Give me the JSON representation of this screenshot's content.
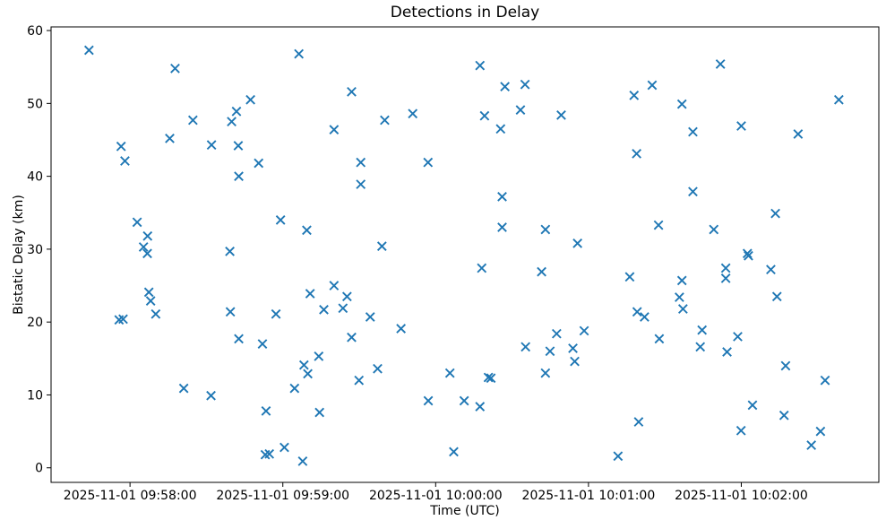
{
  "chart_data": {
    "type": "scatter",
    "title": "Detections in Delay",
    "xlabel": "Time (UTC)",
    "ylabel": "Bistatic Delay (km)",
    "marker": "x",
    "marker_color": "#1f77b4",
    "axis_color": "#000000",
    "background_color": "#ffffff",
    "grid": false,
    "legend": "none",
    "x_tick_labels": [
      "2025-11-01 09:58:00",
      "2025-11-01 09:59:00",
      "2025-11-01 10:00:00",
      "2025-11-01 10:01:00",
      "2025-11-01 10:02:00"
    ],
    "x_tick_seconds": [
      0,
      60,
      120,
      180,
      240
    ],
    "y_tick_labels": [
      "0",
      "10",
      "20",
      "30",
      "40",
      "50",
      "60"
    ],
    "y_ticks": [
      0,
      10,
      20,
      30,
      40,
      50,
      60
    ],
    "xlim_seconds": [
      -31,
      294
    ],
    "ylim": [
      -2.0,
      60.5
    ],
    "points_format": [
      "seconds_after_first_xtick",
      "bistatic_delay_km"
    ],
    "points": [
      [
        -16.1,
        57.3
      ],
      [
        -4.3,
        20.3
      ],
      [
        -3.5,
        44.1
      ],
      [
        -2.7,
        20.4
      ],
      [
        -2.0,
        42.1
      ],
      [
        2.8,
        33.7
      ],
      [
        5.3,
        30.3
      ],
      [
        6.8,
        29.4
      ],
      [
        6.9,
        31.8
      ],
      [
        7.4,
        24.1
      ],
      [
        8.1,
        22.9
      ],
      [
        10.1,
        21.1
      ],
      [
        15.6,
        45.2
      ],
      [
        17.7,
        54.8
      ],
      [
        21.1,
        10.9
      ],
      [
        24.7,
        47.7
      ],
      [
        31.8,
        9.9
      ],
      [
        32.0,
        44.3
      ],
      [
        39.2,
        29.7
      ],
      [
        39.4,
        21.4
      ],
      [
        39.9,
        47.5
      ],
      [
        41.8,
        48.9
      ],
      [
        42.5,
        44.2
      ],
      [
        42.7,
        40.0
      ],
      [
        42.7,
        17.7
      ],
      [
        47.3,
        50.5
      ],
      [
        50.5,
        41.8
      ],
      [
        52.0,
        17.0
      ],
      [
        53.1,
        1.8
      ],
      [
        53.4,
        7.8
      ],
      [
        54.7,
        1.9
      ],
      [
        57.3,
        21.1
      ],
      [
        59.1,
        34.0
      ],
      [
        60.6,
        2.8
      ],
      [
        64.6,
        10.9
      ],
      [
        66.3,
        56.8
      ],
      [
        67.8,
        0.9
      ],
      [
        68.3,
        14.1
      ],
      [
        69.4,
        32.6
      ],
      [
        69.8,
        12.9
      ],
      [
        70.7,
        23.9
      ],
      [
        74.1,
        15.3
      ],
      [
        74.4,
        7.6
      ],
      [
        76.1,
        21.7
      ],
      [
        80.1,
        46.4
      ],
      [
        80.1,
        25.0
      ],
      [
        83.6,
        21.9
      ],
      [
        85.2,
        23.5
      ],
      [
        87.0,
        51.6
      ],
      [
        87.0,
        17.9
      ],
      [
        89.9,
        12.0
      ],
      [
        90.6,
        41.9
      ],
      [
        90.6,
        38.9
      ],
      [
        94.3,
        20.7
      ],
      [
        97.2,
        13.6
      ],
      [
        98.9,
        30.4
      ],
      [
        100.0,
        47.7
      ],
      [
        106.4,
        19.1
      ],
      [
        111.0,
        48.6
      ],
      [
        117.0,
        41.9
      ],
      [
        117.1,
        9.2
      ],
      [
        125.6,
        13.0
      ],
      [
        127.1,
        2.2
      ],
      [
        131.2,
        9.2
      ],
      [
        137.4,
        55.2
      ],
      [
        137.4,
        8.4
      ],
      [
        138.1,
        27.4
      ],
      [
        139.2,
        48.3
      ],
      [
        140.7,
        12.4
      ],
      [
        141.7,
        12.3
      ],
      [
        145.5,
        46.5
      ],
      [
        146.1,
        37.2
      ],
      [
        146.1,
        33.0
      ],
      [
        147.2,
        52.3
      ],
      [
        153.3,
        49.1
      ],
      [
        155.1,
        52.6
      ],
      [
        155.3,
        16.6
      ],
      [
        161.6,
        26.9
      ],
      [
        163.1,
        32.7
      ],
      [
        163.1,
        13.0
      ],
      [
        164.9,
        16.0
      ],
      [
        167.5,
        18.4
      ],
      [
        169.3,
        48.4
      ],
      [
        173.9,
        16.4
      ],
      [
        174.6,
        14.6
      ],
      [
        175.7,
        30.8
      ],
      [
        178.3,
        18.8
      ],
      [
        191.6,
        1.6
      ],
      [
        196.2,
        26.2
      ],
      [
        197.9,
        51.1
      ],
      [
        198.9,
        43.1
      ],
      [
        199.1,
        21.4
      ],
      [
        199.7,
        6.3
      ],
      [
        202.0,
        20.7
      ],
      [
        205.0,
        52.5
      ],
      [
        207.5,
        33.3
      ],
      [
        207.8,
        17.7
      ],
      [
        215.7,
        23.4
      ],
      [
        216.7,
        49.9
      ],
      [
        216.7,
        25.7
      ],
      [
        217.1,
        21.8
      ],
      [
        221.0,
        46.1
      ],
      [
        221.0,
        37.9
      ],
      [
        223.9,
        16.6
      ],
      [
        224.6,
        18.9
      ],
      [
        229.2,
        32.7
      ],
      [
        231.8,
        55.4
      ],
      [
        233.9,
        27.4
      ],
      [
        233.9,
        26.0
      ],
      [
        234.4,
        15.9
      ],
      [
        238.6,
        18.0
      ],
      [
        239.9,
        5.1
      ],
      [
        240.0,
        46.9
      ],
      [
        242.4,
        29.4
      ],
      [
        242.8,
        29.1
      ],
      [
        244.4,
        8.6
      ],
      [
        251.6,
        27.2
      ],
      [
        253.4,
        34.9
      ],
      [
        254.0,
        23.5
      ],
      [
        256.8,
        7.2
      ],
      [
        257.4,
        14.0
      ],
      [
        262.3,
        45.8
      ],
      [
        267.5,
        3.1
      ],
      [
        271.1,
        5.0
      ],
      [
        272.9,
        12.0
      ],
      [
        278.3,
        50.5
      ]
    ]
  }
}
